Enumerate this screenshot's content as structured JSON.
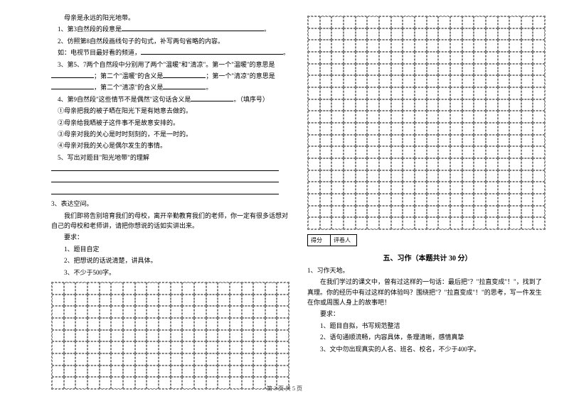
{
  "q_intro1": "母亲是永远的阳光地带。",
  "q1": "1、第3自然段的段意是",
  "q2_a": "2、仿照第8自然段画线句子的句式，补写两句省略的内容。",
  "q2_b": "如：电视节目最好看的频道，",
  "q3_a": "3、第5、7两个自然段中分别用了两个\"温暖\"和\"清凉\"。第一个\"温暖\"的意思是",
  "q3_b": "；第二个\"温暖\"的含义是",
  "q3_c": "；第一个\"清凉\"的意思是",
  "q3_d": "，第二个\"清凉\"的含义是",
  "q4_a": "4、第9自然段\"这些情节不是偶然\"这句话含义是",
  "q4_b": "。（填序号）",
  "q4_opt1": "①母亲把我的被子晒在阳光下是有她意去做的。",
  "q4_opt2": "②母亲给我晒被子这件事不是故意安排的。",
  "q4_opt3": "③母亲对我的关心是时时刻刻的，不是一时的。",
  "q4_opt4": "④母亲对我的关心是偶尔发生的事情。",
  "q5": "5、写出对题目\"阳光地带\"的理解",
  "s3_title": "3、表达空间。",
  "s3_body": "我们即将告别培育我们的母校，离开辛勤教育我们的老师，你一定有很多话想对自己的母校和老师讲，请把你想说的话如实讲出来。",
  "req_label": "要求：",
  "req1": "1、题目自定",
  "req2": "2、把想说的话说清楚，讲具体。",
  "req3": "3、不少于500字。",
  "score1": "得分",
  "score2": "评卷人",
  "sec5_title": "五、习作（本题共计 30 分）",
  "w1_title": "1、习作天地。",
  "w1_body": "在我们学过的课文中，曾有过这样的一句话：最后把\"？\"拉直变成\"！\"，找到了真理。你的经历中有过这样的体验吗？围绕把\"？\"拉直变成\"！\"的思考，写一件发生在你或周围人身上的故事吧！",
  "w_req_label": "要求：",
  "w_req1": "1、题目自拟，书写规范整洁",
  "w_req2": "2、语句通顺流畅，内容具体，条理清晰，感情真挚",
  "w_req3": "3、文中勿出现真实的人名、班名、校名，不少于400字。",
  "footer": "第 3 页 共 5 页",
  "grid_left_rows": 9,
  "grid_left_cols": 20,
  "grid_right_rows": 18,
  "grid_right_cols": 20
}
